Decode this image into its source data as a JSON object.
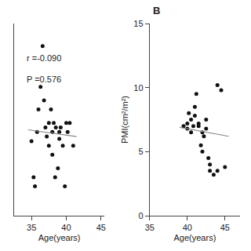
{
  "chart_data": [
    {
      "type": "scatter",
      "series": [
        {
          "type": "scatter",
          "color": "#111111",
          "x": [
            35.0,
            35.3,
            35.5,
            35.8,
            36.0,
            36.3,
            36.6,
            36.8,
            37.0,
            37.2,
            37.5,
            37.5,
            37.8,
            38.0,
            38.0,
            38.2,
            38.4,
            38.5,
            38.8,
            39.0,
            39.0,
            39.2,
            39.5,
            39.8,
            40.0,
            40.2,
            40.5,
            41.0
          ],
          "values": [
            6.8,
            5.2,
            4.8,
            7.2,
            8.2,
            9.2,
            11.0,
            8.6,
            7.4,
            7.0,
            7.6,
            6.6,
            8.2,
            7.2,
            6.2,
            7.6,
            5.2,
            7.4,
            5.6,
            7.2,
            6.9,
            7.4,
            6.6,
            4.8,
            7.6,
            7.2,
            7.6,
            6.6
          ]
        },
        {
          "type": "line",
          "color": "#888888",
          "x": [
            34.5,
            41.5
          ],
          "values": [
            7.3,
            7.0
          ]
        }
      ],
      "annotations": [
        "r =-0.090",
        "P =0.576"
      ],
      "xlabel": "Age(years)",
      "xlim": [
        32.5,
        45.5
      ],
      "xticks": [
        35,
        40,
        45
      ],
      "ylim": [
        3.5,
        12.0
      ],
      "tick_labels": "x",
      "grid": false
    },
    {
      "type": "scatter",
      "title": "B",
      "series": [
        {
          "type": "scatter",
          "color": "#111111",
          "x": [
            39.5,
            40.0,
            40.0,
            40.2,
            40.5,
            40.5,
            40.8,
            41.0,
            41.0,
            41.2,
            41.5,
            41.5,
            41.8,
            42.0,
            42.0,
            42.2,
            42.5,
            42.5,
            42.8,
            43.0,
            43.0,
            43.5,
            44.0,
            44.0,
            44.5,
            45.0
          ],
          "values": [
            7.0,
            7.2,
            6.8,
            8.0,
            7.5,
            6.5,
            7.0,
            8.5,
            7.8,
            9.5,
            7.0,
            7.2,
            5.5,
            5.0,
            6.5,
            6.2,
            7.5,
            6.8,
            4.5,
            3.5,
            4.0,
            3.2,
            3.5,
            10.2,
            9.8,
            3.8
          ]
        },
        {
          "type": "line",
          "color": "#888888",
          "x": [
            39.0,
            45.5
          ],
          "values": [
            6.9,
            6.2
          ]
        }
      ],
      "xlabel": "Age(years)",
      "ylabel": "PMI(cm²/m²)",
      "xlim": [
        35.0,
        47.0
      ],
      "xticks": [
        35,
        40,
        45
      ],
      "ylim": [
        0,
        15
      ],
      "yticks": [
        0,
        5,
        10,
        15
      ],
      "grid": false
    }
  ]
}
